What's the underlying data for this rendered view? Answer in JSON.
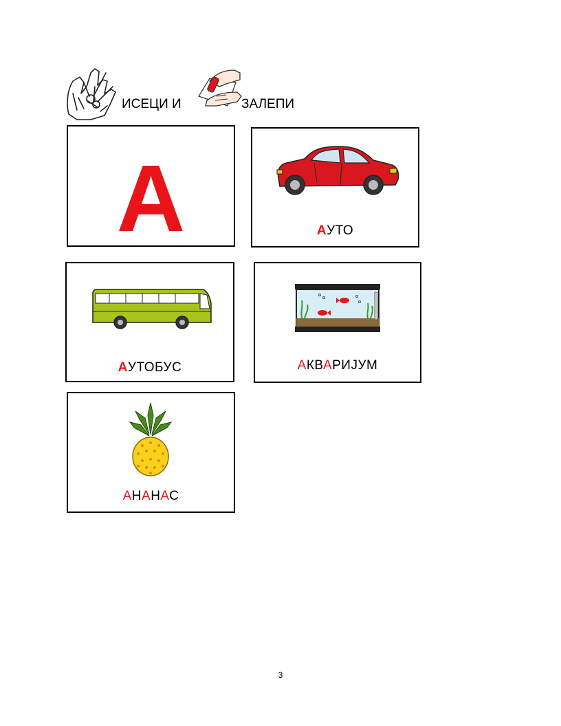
{
  "header": {
    "cut_label": "ИСЕЦИ И",
    "glue_label": "ЗАЛЕПИ"
  },
  "letter_card": {
    "letter": "А"
  },
  "cards": [
    {
      "id": "car",
      "parts": [
        {
          "t": "А",
          "red": true,
          "bold": true
        },
        {
          "t": "УТО",
          "red": false
        }
      ]
    },
    {
      "id": "bus",
      "parts": [
        {
          "t": "А",
          "red": true,
          "bold": true
        },
        {
          "t": "УТОБУС",
          "red": false
        }
      ]
    },
    {
      "id": "aquarium",
      "parts": [
        {
          "t": "А",
          "red": true
        },
        {
          "t": "КВ",
          "red": false
        },
        {
          "t": "А",
          "red": true
        },
        {
          "t": "РИЈУМ",
          "red": false
        }
      ]
    },
    {
      "id": "pineapple",
      "parts": [
        {
          "t": "А",
          "red": true
        },
        {
          "t": "Н",
          "red": false
        },
        {
          "t": "А",
          "red": true
        },
        {
          "t": "Н",
          "red": false
        },
        {
          "t": "А",
          "red": true
        },
        {
          "t": "С",
          "red": false
        }
      ]
    }
  ],
  "colors": {
    "accent_red": "#e8141a",
    "car_red": "#d8181e",
    "bus_green": "#a8c41a",
    "pineapple_yellow": "#f6d21a"
  },
  "icons": [
    "scissors-hands-icon",
    "glue-hands-icon",
    "car-icon",
    "bus-icon",
    "aquarium-icon",
    "pineapple-icon"
  ],
  "page_number": "3"
}
